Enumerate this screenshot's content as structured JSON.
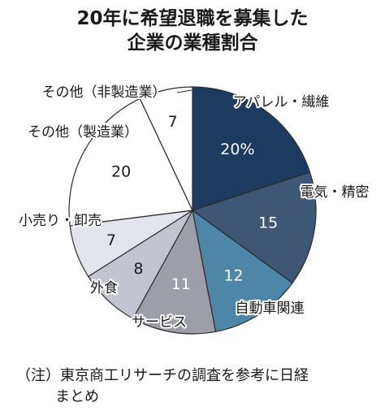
{
  "title_line1": "20年に希望退職を募集した",
  "title_line2": "企業の業種割合",
  "chart_data": {
    "type": "pie",
    "start": "top",
    "direction": "clockwise",
    "unit": "%",
    "slices": [
      {
        "label": "アパレル・繊維",
        "value": 20,
        "value_label": "20%",
        "color": "#1d3a5f",
        "text_color": "#ffffff"
      },
      {
        "label": "電気・精密",
        "value": 15,
        "value_label": "15",
        "color": "#3d5775",
        "text_color": "#ffffff"
      },
      {
        "label": "自動車関連",
        "value": 12,
        "value_label": "12",
        "color": "#4e86a8",
        "text_color": "#ffffff"
      },
      {
        "label": "サービス",
        "value": 11,
        "value_label": "11",
        "color": "#9c9ea8",
        "text_color": "#ffffff"
      },
      {
        "label": "外食",
        "value": 8,
        "value_label": "8",
        "color": "#c2c5cf",
        "text_color": "#1a1a1a"
      },
      {
        "label": "小売り・卸売",
        "value": 7,
        "value_label": "7",
        "color": "#e2e5ec",
        "text_color": "#1a1a1a"
      },
      {
        "label": "その他（製造業）",
        "value": 20,
        "value_label": "20",
        "color": "#ffffff",
        "text_color": "#1a1a1a"
      },
      {
        "label": "その他（非製造業）",
        "value": 7,
        "value_label": "7",
        "color": "#ffffff",
        "text_color": "#1a1a1a"
      }
    ]
  },
  "note_prefix": "（注）",
  "note_line1": "東京商工リサーチの調査を参考に日経",
  "note_line2": "まとめ"
}
